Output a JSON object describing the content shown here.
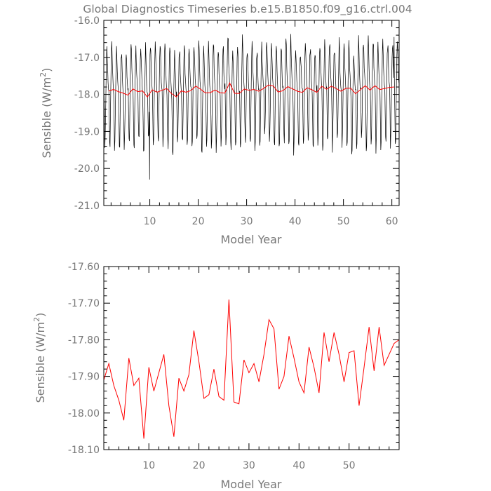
{
  "figure": {
    "title": "Global Diagnostics Timeseries b.e15.B1850.f09_g16.ctrl.004"
  },
  "colors": {
    "monthly_line": "#000000",
    "annual_line": "#ff0000",
    "text": "#777777",
    "frame": "#000000"
  },
  "chart_data": [
    {
      "type": "line",
      "xlabel": "Model Year",
      "ylabel_base": "Sensible (W/m",
      "ylabel_sup": "2",
      "ylabel_end": ")",
      "xlim": [
        0.5,
        61.5
      ],
      "ylim": [
        -21.0,
        -16.0
      ],
      "xticks": [
        10,
        20,
        30,
        40,
        50,
        60
      ],
      "xtick_labels": [
        "10",
        "20",
        "30",
        "40",
        "50",
        "60"
      ],
      "yticks": [
        -21.0,
        -20.0,
        -19.0,
        -18.0,
        -17.0,
        -16.0
      ],
      "ytick_labels": [
        "-21.0",
        "-20.0",
        "-19.0",
        "-18.0",
        "-17.0",
        "-16.0"
      ],
      "series": [
        {
          "color": "#000000",
          "description": "monthly means (seasonal cycle ~ -19.4 to -16.8 W/m2)",
          "x_start": 0.5417,
          "x_step": 0.0833333,
          "monthly_cycle": [
            -17.9,
            -18.6,
            -19.3,
            -19.2,
            -18.5,
            -17.7,
            -17.0,
            -16.7,
            -16.9,
            -17.3,
            -17.6,
            -17.8
          ],
          "extremes": {
            "min_year": 10,
            "min_value": -20.3,
            "max_year": 60.5,
            "max_value": -16.45
          }
        },
        {
          "color": "#ff0000",
          "description": "annual means",
          "ref": "annual"
        }
      ]
    },
    {
      "type": "line",
      "xlabel": "Model Year",
      "ylabel_base": "Sensible (W/m",
      "ylabel_sup": "2",
      "ylabel_end": ")",
      "xlim": [
        1,
        60
      ],
      "ylim": [
        -18.1,
        -17.6
      ],
      "xticks": [
        10,
        20,
        30,
        40,
        50
      ],
      "xtick_labels": [
        "10",
        "20",
        "30",
        "40",
        "50"
      ],
      "yticks": [
        -18.1,
        -18.0,
        -17.9,
        -17.8,
        -17.7,
        -17.6
      ],
      "ytick_labels": [
        "-18.10",
        "-18.00",
        "-17.90",
        "-17.80",
        "-17.70",
        "-17.60"
      ],
      "series": [
        {
          "color": "#ff0000",
          "x": [
            1,
            2,
            3,
            4,
            5,
            6,
            7,
            8,
            9,
            10,
            11,
            12,
            13,
            14,
            15,
            16,
            17,
            18,
            19,
            20,
            21,
            22,
            23,
            24,
            25,
            26,
            27,
            28,
            29,
            30,
            31,
            32,
            33,
            34,
            35,
            36,
            37,
            38,
            39,
            40,
            41,
            42,
            43,
            44,
            45,
            46,
            47,
            48,
            49,
            50,
            51,
            52,
            53,
            54,
            55,
            56,
            57,
            58,
            59,
            60
          ],
          "y": [
            -17.91,
            -17.865,
            -17.925,
            -17.965,
            -18.02,
            -17.85,
            -17.925,
            -17.905,
            -18.07,
            -17.875,
            -17.94,
            -17.89,
            -17.84,
            -17.98,
            -18.065,
            -17.905,
            -17.94,
            -17.895,
            -17.775,
            -17.86,
            -17.96,
            -17.95,
            -17.88,
            -17.955,
            -17.965,
            -17.69,
            -17.97,
            -17.975,
            -17.855,
            -17.89,
            -17.865,
            -17.915,
            -17.84,
            -17.745,
            -17.77,
            -17.935,
            -17.9,
            -17.79,
            -17.85,
            -17.915,
            -17.945,
            -17.82,
            -17.875,
            -17.945,
            -17.78,
            -17.86,
            -17.78,
            -17.84,
            -17.915,
            -17.835,
            -17.83,
            -17.98,
            -17.875,
            -17.765,
            -17.885,
            -17.765,
            -17.87,
            -17.84,
            -17.81,
            -17.8
          ]
        }
      ]
    }
  ]
}
